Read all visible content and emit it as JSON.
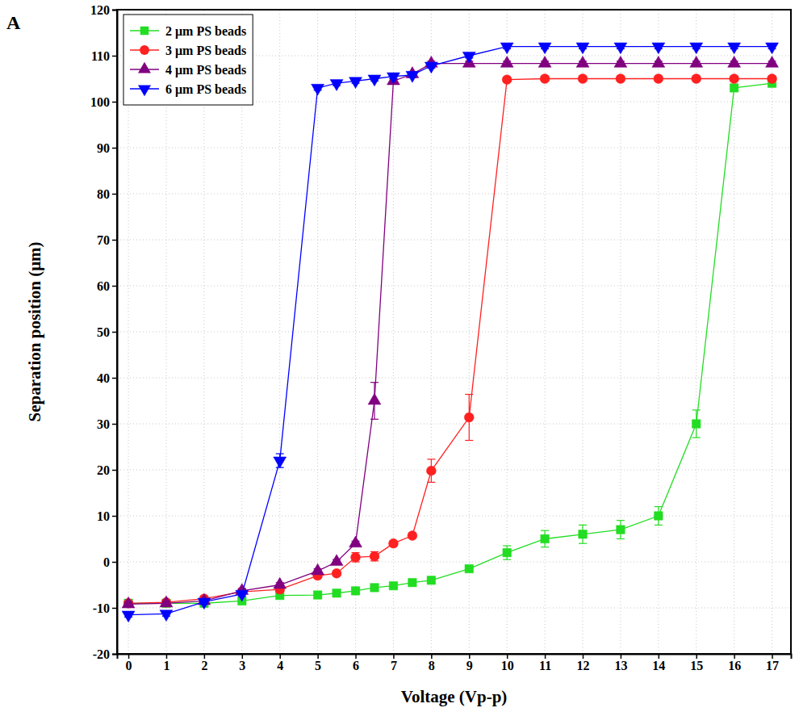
{
  "chart_data": {
    "type": "line",
    "panel_label": "A",
    "x_label": "Voltage (Vp-p)",
    "y_label": "Separation position (μm)",
    "x": [
      0,
      1,
      2,
      3,
      4,
      5,
      5.5,
      6,
      6.5,
      7,
      7.5,
      8,
      9,
      10,
      11,
      12,
      13,
      14,
      15,
      16,
      17
    ],
    "series": [
      {
        "name": "2 μm PS beads",
        "color": "#22dd22",
        "marker": "square",
        "values": [
          -9,
          -9,
          -9,
          -8.5,
          -7.3,
          -7.2,
          -6.8,
          -6.3,
          -5.6,
          -5.2,
          -4.5,
          -4,
          -1.5,
          2,
          5,
          6,
          7,
          10,
          30,
          103,
          104
        ],
        "errors": [
          0.5,
          0.5,
          0.5,
          0.5,
          0.5,
          0.5,
          0.5,
          0.5,
          0.5,
          0.5,
          0.5,
          0.5,
          0.5,
          1.5,
          1.8,
          2,
          2,
          2,
          3,
          0.5,
          0.5
        ]
      },
      {
        "name": "3 μm PS beads",
        "color": "#ff2020",
        "marker": "circle",
        "values": [
          -9,
          -8.8,
          -8,
          -6.5,
          -6,
          -3,
          -2.5,
          1,
          1.2,
          4,
          5.7,
          19.8,
          31.4,
          104.8,
          105,
          105,
          105,
          105,
          105,
          105,
          105
        ],
        "errors": [
          0.5,
          0.5,
          0.5,
          0.5,
          0.5,
          0.5,
          0.5,
          1,
          1,
          0.5,
          0.5,
          2.5,
          5,
          0.5,
          0.5,
          0.5,
          0.5,
          0.5,
          0.5,
          0.5,
          0.5
        ]
      },
      {
        "name": "4 μm PS beads",
        "color": "#800080",
        "marker": "triangle",
        "values": [
          -9.2,
          -9,
          -8.5,
          -6.3,
          -5,
          -2,
          0,
          4,
          35,
          104.5,
          106,
          108.3,
          108.3,
          108.3,
          108.3,
          108.3,
          108.3,
          108.3,
          108.3,
          108.3,
          108.3
        ],
        "errors": [
          0.5,
          0.5,
          0.5,
          0.5,
          0.5,
          0.5,
          0.5,
          0.5,
          4,
          0.5,
          0.5,
          0.5,
          0.5,
          0.5,
          0.5,
          0.5,
          0.5,
          0.5,
          0.5,
          0.5,
          0.5
        ]
      },
      {
        "name": "6 μm PS beads",
        "color": "#0000ff",
        "marker": "triangle-down",
        "values": [
          -11.5,
          -11.3,
          -8.7,
          -7,
          22,
          103,
          104,
          104.5,
          105,
          105.5,
          105.8,
          107.8,
          110,
          112,
          112,
          112,
          112,
          112,
          112,
          112,
          112
        ],
        "errors": [
          0.5,
          0.5,
          0.5,
          0.5,
          1.5,
          0.5,
          0.5,
          0.5,
          0.5,
          0.5,
          0.5,
          0.5,
          0.5,
          0.5,
          0.5,
          0.5,
          0.5,
          0.5,
          0.5,
          0.5,
          0.5
        ]
      }
    ],
    "xlim": [
      -0.3,
      17.5
    ],
    "xticks": [
      0,
      1,
      2,
      3,
      4,
      5,
      6,
      7,
      8,
      9,
      10,
      11,
      12,
      13,
      14,
      15,
      16,
      17
    ],
    "ylim": [
      -20,
      120
    ],
    "yticks": [
      -20,
      -10,
      0,
      10,
      20,
      30,
      40,
      50,
      60,
      70,
      80,
      90,
      100,
      110,
      120
    ],
    "grid": true,
    "legend": "upper left"
  }
}
